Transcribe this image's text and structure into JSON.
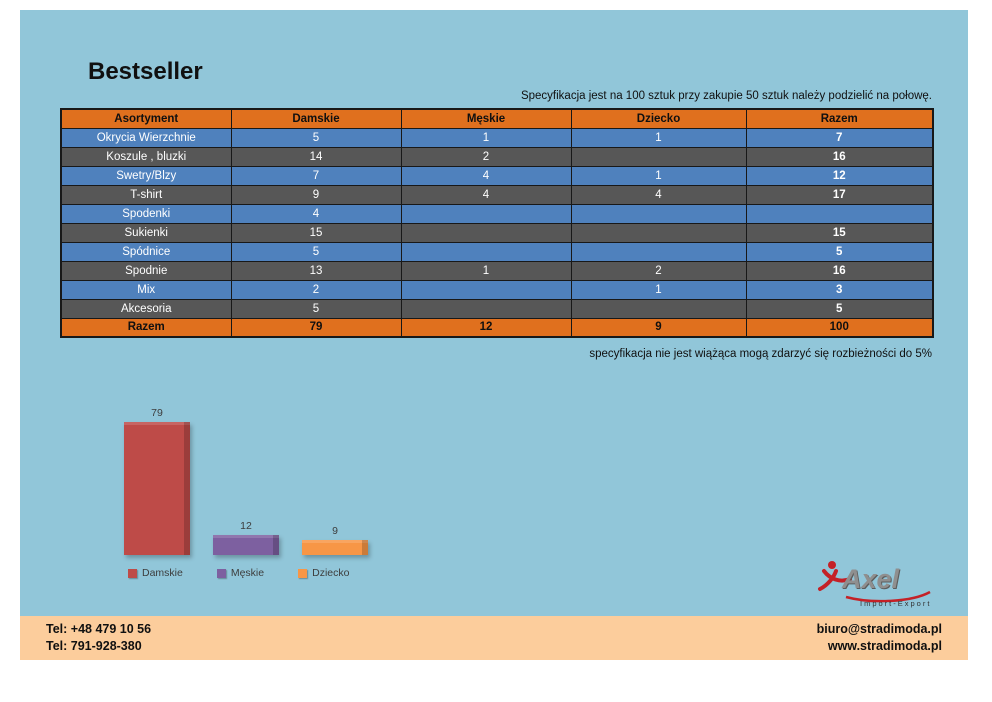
{
  "page": {
    "title": "Bestseller",
    "subtitle": "Specyfikacja jest na 100 sztuk przy zakupie 50 sztuk należy podzielić na połowę.",
    "note": "specyfikacja nie jest wiążąca mogą zdarzyć się rozbieżności do 5%"
  },
  "table": {
    "columns": [
      "Asortyment",
      "Damskie",
      "Męskie",
      "Dziecko",
      "Razem"
    ],
    "rows": [
      [
        "Okrycia Wierzchnie",
        "5",
        "1",
        "1",
        "7"
      ],
      [
        "Koszule , bluzki",
        "14",
        "2",
        "",
        "16"
      ],
      [
        "Swetry/Blzy",
        "7",
        "4",
        "1",
        "12"
      ],
      [
        "T-shirt",
        "9",
        "4",
        "4",
        "17"
      ],
      [
        "Spodenki",
        "4",
        "",
        "",
        ""
      ],
      [
        "Sukienki",
        "15",
        "",
        "",
        "15"
      ],
      [
        "Spódnice",
        "5",
        "",
        "",
        "5"
      ],
      [
        "Spodnie",
        "13",
        "1",
        "2",
        "16"
      ],
      [
        "Mix",
        "2",
        "",
        "1",
        "3"
      ],
      [
        "Akcesoria",
        "5",
        "",
        "",
        "5"
      ]
    ],
    "total": [
      "Razem",
      "79",
      "12",
      "9",
      "100"
    ]
  },
  "chart_data": {
    "type": "bar",
    "title": "",
    "xlabel": "",
    "ylabel": "",
    "categories": [
      "Damskie",
      "Męskie",
      "Dziecko"
    ],
    "values": [
      79,
      12,
      9
    ],
    "data_labels": [
      "79",
      "12",
      "9"
    ],
    "colors": [
      "#BE4B48",
      "#7D60A0",
      "#F79646"
    ],
    "legend_position": "bottom",
    "ylim": [
      0,
      80
    ],
    "grid": false
  },
  "logo": {
    "brand": "Axel",
    "tagline": "Import-Export"
  },
  "footer": {
    "left_lines": [
      "Tel: +48 479 10 56",
      "Tel: 791-928-380"
    ],
    "right_lines": [
      "biuro@stradimoda.pl",
      "www.stradimoda.pl"
    ]
  },
  "colors": {
    "sheet_background": "#91C6D9",
    "header_orange": "#E0701E",
    "row_blue": "#4F81BD",
    "row_gray": "#575757",
    "footer_peach": "#FCCD9C",
    "logo_red": "#C42127"
  }
}
